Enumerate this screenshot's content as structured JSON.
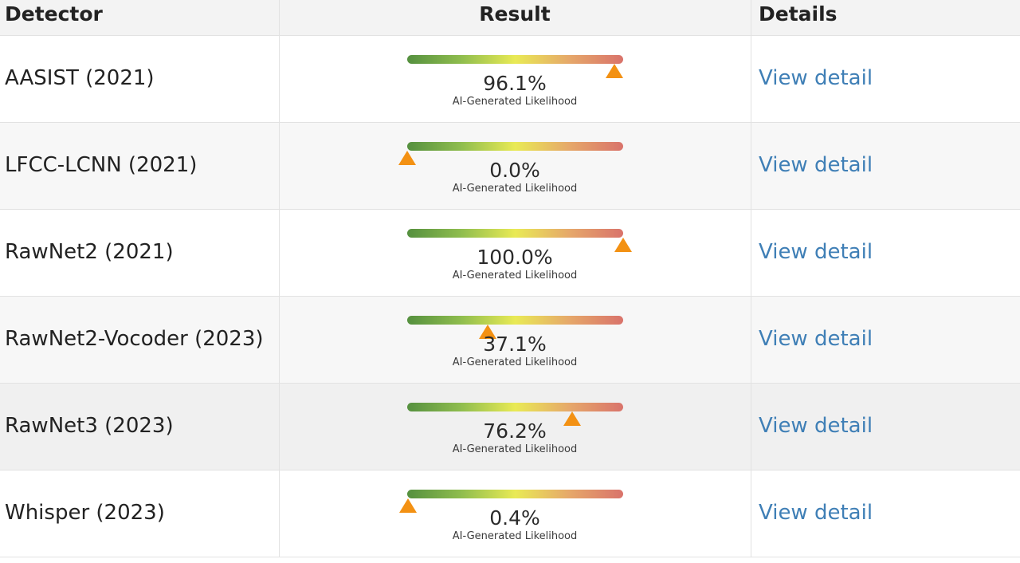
{
  "headers": {
    "detector": "Detector",
    "result": "Result",
    "details": "Details"
  },
  "colors": {
    "marker": "#f39113",
    "link": "#3f7fb6",
    "gradient": [
      "#55903f",
      "#8fbd4e",
      "#e9ea55",
      "#e6a86a",
      "#d9736b"
    ]
  },
  "rows": [
    {
      "detector": "AASIST (2021)",
      "likelihood": 0.961,
      "percent": "96.1%",
      "caption": "AI-Generated Likelihood",
      "link": "View detail"
    },
    {
      "detector": "LFCC-LCNN (2021)",
      "likelihood": 0.0,
      "percent": "0.0%",
      "caption": "AI-Generated Likelihood",
      "link": "View detail"
    },
    {
      "detector": "RawNet2 (2021)",
      "likelihood": 1.0,
      "percent": "100.0%",
      "caption": "AI-Generated Likelihood",
      "link": "View detail"
    },
    {
      "detector": "RawNet2-Vocoder (2023)",
      "likelihood": 0.371,
      "percent": "37.1%",
      "caption": "AI-Generated Likelihood",
      "link": "View detail"
    },
    {
      "detector": "RawNet3 (2023)",
      "likelihood": 0.762,
      "percent": "76.2%",
      "caption": "AI-Generated Likelihood",
      "link": "View detail"
    },
    {
      "detector": "Whisper (2023)",
      "likelihood": 0.004,
      "percent": "0.4%",
      "caption": "AI-Generated Likelihood",
      "link": "View detail"
    }
  ]
}
